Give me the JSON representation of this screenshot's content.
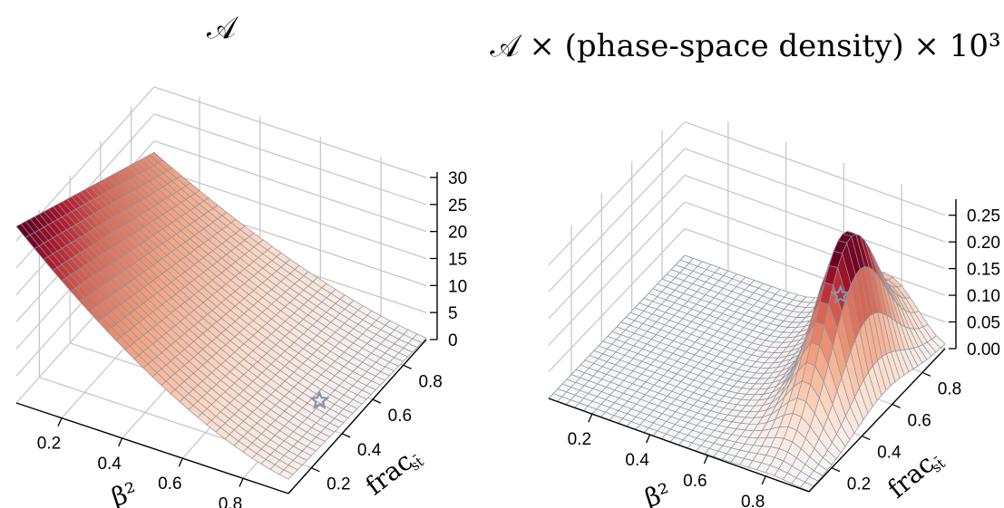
{
  "chart_data": [
    {
      "type": "surface",
      "title": "𝒜",
      "xlabel": "β²",
      "ylabel": "frac",
      "ylabel_subscript": "st̄",
      "xticks": [
        "0.2",
        "0.4",
        "0.6",
        "0.8"
      ],
      "yticks": [
        "0.2",
        "0.4",
        "0.6",
        "0.8"
      ],
      "zticks": [
        "0",
        "5",
        "10",
        "15",
        "20",
        "25",
        "30"
      ],
      "xlim": [
        0.05,
        0.95
      ],
      "ylim": [
        0.05,
        0.95
      ],
      "zlim": [
        0,
        31
      ],
      "colormap": "RdBu_r (white to dark red)",
      "colors": {
        "low": "#f7f7f7",
        "mid": "#f4a582",
        "high": "#67001f",
        "grid": "#8894a8",
        "marker": "#8894a8"
      },
      "marker": {
        "shape": "star",
        "x": 0.85,
        "y": 0.45
      },
      "grid": true
    },
    {
      "type": "surface",
      "title": "𝒜 × (phase-space density) × 10³",
      "xlabel": "β²",
      "ylabel": "frac",
      "ylabel_subscript": "st̄",
      "xticks": [
        "0.2",
        "0.4",
        "0.6",
        "0.8"
      ],
      "yticks": [
        "0.2",
        "0.4",
        "0.6",
        "0.8"
      ],
      "zticks": [
        "0.00",
        "0.05",
        "0.10",
        "0.15",
        "0.20",
        "0.25"
      ],
      "xlim": [
        0.05,
        0.95
      ],
      "ylim": [
        0.05,
        0.95
      ],
      "zlim": [
        0,
        0.28
      ],
      "colormap": "RdBu_r (white to dark red)",
      "colors": {
        "low": "#f7f7f7",
        "mid": "#f4a582",
        "high": "#67001f",
        "grid": "#8894a8",
        "marker": "#8894a8"
      },
      "marker": {
        "shape": "star",
        "x": 0.85,
        "y": 0.45
      },
      "grid": true
    }
  ]
}
